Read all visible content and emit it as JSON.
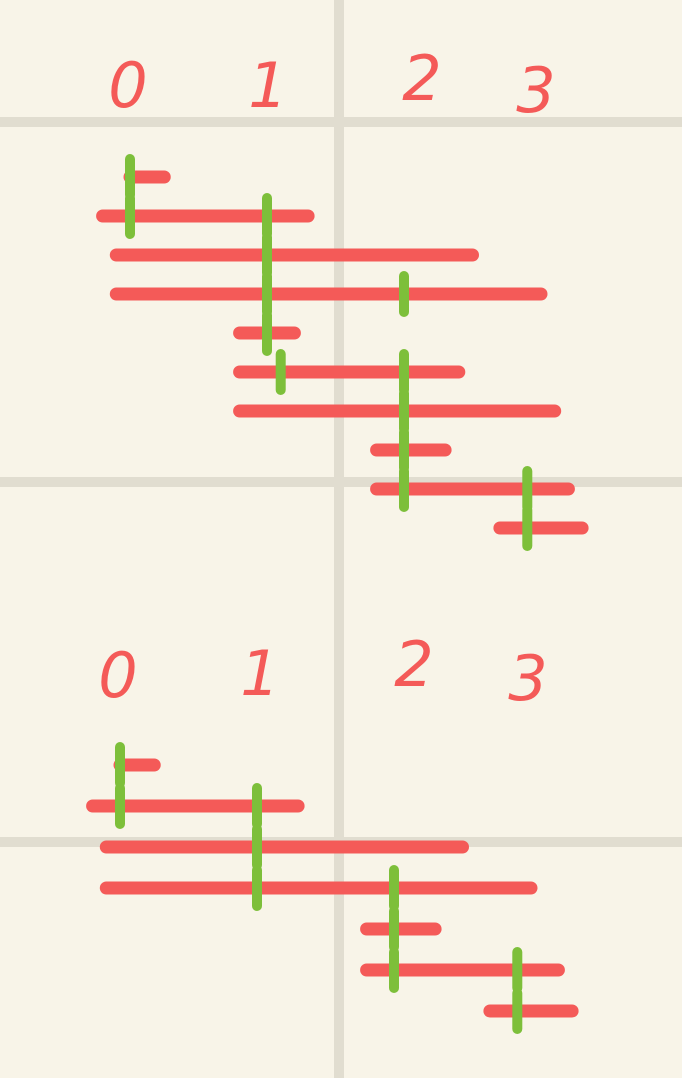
{
  "colors": {
    "background": "#f8f4e8",
    "grid": "#e1ddd0",
    "interval": "#f45a58",
    "tick": "#7dbf3a"
  },
  "top_diagram": {
    "axis_labels": [
      "0",
      "1",
      "2",
      "3"
    ],
    "intervals": [
      {
        "start": 0.0,
        "end": 0.25,
        "ticks": [
          0.0
        ]
      },
      {
        "start": -0.2,
        "end": 1.3,
        "ticks": [
          0.0,
          1.0
        ]
      },
      {
        "start": -0.1,
        "end": 2.5,
        "ticks": [
          1.0
        ]
      },
      {
        "start": -0.1,
        "end": 3.0,
        "ticks": [
          1.0,
          2.0
        ]
      },
      {
        "start": 0.8,
        "end": 1.2,
        "ticks": [
          1.0
        ]
      },
      {
        "start": 0.8,
        "end": 2.4,
        "ticks": [
          1.1,
          2.0
        ]
      },
      {
        "start": 0.8,
        "end": 3.1,
        "ticks": [
          2.0
        ]
      },
      {
        "start": 1.8,
        "end": 2.3,
        "ticks": [
          2.0
        ]
      },
      {
        "start": 1.8,
        "end": 3.2,
        "ticks": [
          2.0,
          2.9
        ]
      },
      {
        "start": 2.7,
        "end": 3.3,
        "ticks": [
          2.9
        ]
      }
    ]
  },
  "bottom_diagram": {
    "axis_labels": [
      "0",
      "1",
      "2",
      "3"
    ],
    "intervals": [
      {
        "start": 0.0,
        "end": 0.25,
        "ticks": [
          0.0
        ]
      },
      {
        "start": -0.2,
        "end": 1.3,
        "ticks": [
          0.0,
          1.0
        ]
      },
      {
        "start": -0.1,
        "end": 2.5,
        "ticks": [
          1.0
        ]
      },
      {
        "start": -0.1,
        "end": 3.0,
        "ticks": [
          1.0,
          2.0
        ]
      },
      {
        "start": 1.8,
        "end": 2.3,
        "ticks": [
          2.0
        ]
      },
      {
        "start": 1.8,
        "end": 3.2,
        "ticks": [
          2.0,
          2.9
        ]
      },
      {
        "start": 2.7,
        "end": 3.3,
        "ticks": [
          2.9
        ]
      }
    ]
  }
}
